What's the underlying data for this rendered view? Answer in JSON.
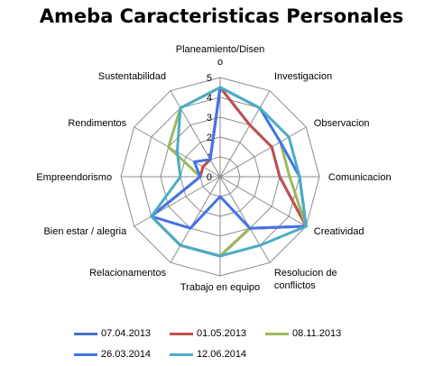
{
  "chart_data": {
    "type": "radar",
    "title": "Ameba Caracteristicas Personales",
    "categories": [
      "Planeamiento/Diseno",
      "Investigacion",
      "Observacion",
      "Comunicacion",
      "Creatividad",
      "Resolucion de conflictos",
      "Trabajo en equipo",
      "Relacionamentos",
      "Bien estar / alegria",
      "Empreendorismo",
      "Rendimentos",
      "Sustentabilidad"
    ],
    "category_display": [
      [
        "Planeamiento/Disen",
        "o"
      ],
      [
        "Investigacion"
      ],
      [
        "Observacion"
      ],
      [
        "Comunicacion"
      ],
      [
        "Creatividad"
      ],
      [
        "Resolucion de",
        "conflictos"
      ],
      [
        "Trabajo en equipo"
      ],
      [
        "Relacionamentos"
      ],
      [
        "Bien estar / alegria"
      ],
      [
        "Empreendorismo"
      ],
      [
        "Rendimentos"
      ],
      [
        "Sustentabilidad"
      ]
    ],
    "rlim": [
      0,
      5
    ],
    "ticks": [
      "0",
      "1",
      "2",
      "3",
      "4",
      "5"
    ],
    "grid": true,
    "legend_position": "bottom",
    "series": [
      {
        "name": "07.04.2013",
        "color": "#4472c4",
        "values": [
          4.5,
          3.0,
          3.0,
          3.0,
          5.0,
          3.0,
          4.0,
          4.0,
          4.0,
          1.0,
          1.0,
          1.0
        ]
      },
      {
        "name": "01.05.2013",
        "color": "#c0504d",
        "values": [
          4.5,
          3.0,
          3.0,
          3.0,
          5.0,
          3.0,
          4.0,
          4.0,
          4.0,
          1.0,
          1.0,
          1.0
        ]
      },
      {
        "name": "08.11.2013",
        "color": "#9bbb59",
        "values": [
          4.5,
          4.0,
          3.5,
          3.5,
          5.0,
          3.0,
          4.0,
          4.0,
          4.0,
          1.0,
          3.0,
          4.0
        ]
      },
      {
        "name": "26.03.2014",
        "color": "#4472e8",
        "values": [
          4.5,
          4.0,
          3.5,
          4.0,
          5.0,
          3.0,
          1.0,
          3.0,
          4.0,
          1.0,
          1.5,
          1.0
        ]
      },
      {
        "name": "12.06.2014",
        "color": "#4bacc6",
        "values": [
          4.5,
          4.0,
          4.0,
          4.0,
          5.0,
          4.0,
          4.0,
          4.0,
          4.0,
          2.0,
          2.5,
          4.0
        ]
      }
    ]
  }
}
